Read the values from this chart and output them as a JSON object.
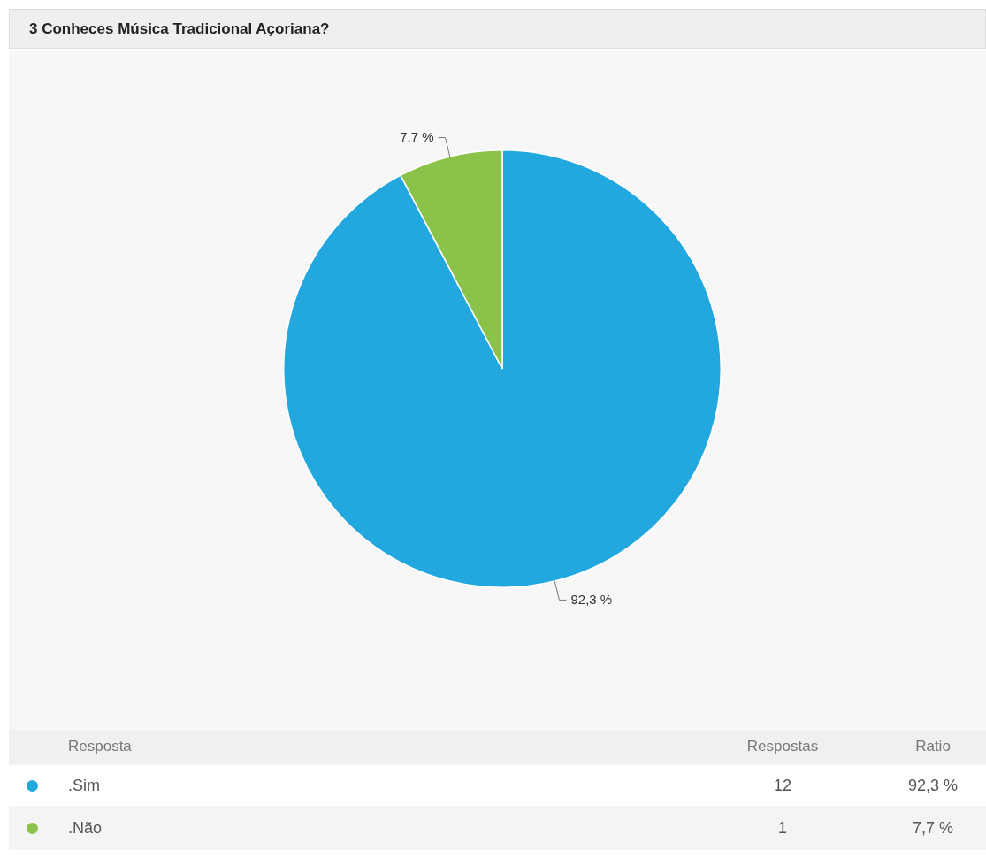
{
  "chart_data": {
    "type": "pie",
    "title": "3 Conheces Música Tradicional Açoriana?",
    "categories": [
      ".Sim",
      ".Não"
    ],
    "values": [
      92.3,
      7.7
    ],
    "colors": [
      "#22a7de",
      "#8bc34a"
    ],
    "value_labels": [
      "92,3 %",
      "7,7 %"
    ],
    "legend": "bottom",
    "annotations": [
      "Resposta",
      "Respostas",
      "Ratio",
      {
        "text": "12",
        "x": ".Sim"
      },
      {
        "text": "1",
        "x": ".Não"
      }
    ]
  }
}
